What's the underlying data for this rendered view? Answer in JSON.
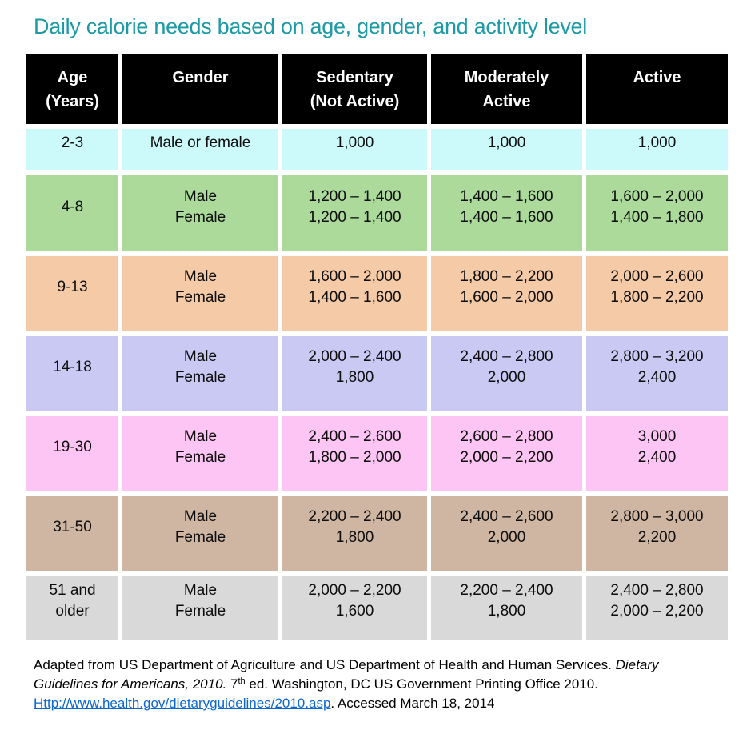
{
  "title": "Daily calorie needs based on age, gender, and activity level",
  "colors": {
    "title_teal": "#1C9AA5",
    "header_bg": "#000000",
    "header_text": "#FFFFFF",
    "link_blue": "#0B67D0",
    "row_cyan": "#CCFAFB",
    "row_green": "#ABDA9B",
    "row_peach": "#F5CBA7",
    "row_lavender": "#C9C9F3",
    "row_pink": "#FCC5F3",
    "row_tan": "#CFB6A3",
    "row_gray": "#D9D9D9"
  },
  "table": {
    "headers": [
      {
        "lines": [
          "Age",
          "(Years)"
        ]
      },
      {
        "lines": [
          "Gender"
        ]
      },
      {
        "lines": [
          "Sedentary",
          "(Not Active)"
        ]
      },
      {
        "lines": [
          "Moderately",
          "Active"
        ]
      },
      {
        "lines": [
          "Active"
        ]
      }
    ],
    "rows": [
      {
        "bg": "#CCFAFB",
        "age": [
          "2-3"
        ],
        "gender": [
          "Male or female"
        ],
        "sedentary": [
          "1,000"
        ],
        "moderately_active": [
          "1,000"
        ],
        "active": [
          "1,000"
        ]
      },
      {
        "bg": "#ABDA9B",
        "age": [
          "4-8"
        ],
        "gender": [
          "Male",
          "Female"
        ],
        "sedentary": [
          "1,200 – 1,400",
          "1,200 – 1,400"
        ],
        "moderately_active": [
          "1,400 – 1,600",
          "1,400 – 1,600"
        ],
        "active": [
          "1,600 – 2,000",
          "1,400 – 1,800"
        ]
      },
      {
        "bg": "#F5CBA7",
        "age": [
          "9-13"
        ],
        "gender": [
          "Male",
          "Female"
        ],
        "sedentary": [
          "1,600 – 2,000",
          "1,400 – 1,600"
        ],
        "moderately_active": [
          "1,800 – 2,200",
          "1,600 – 2,000"
        ],
        "active": [
          "2,000 – 2,600",
          "1,800 – 2,200"
        ]
      },
      {
        "bg": "#C9C9F3",
        "age": [
          "14-18"
        ],
        "gender": [
          "Male",
          "Female"
        ],
        "sedentary": [
          "2,000 – 2,400",
          "1,800"
        ],
        "moderately_active": [
          "2,400 – 2,800",
          "2,000"
        ],
        "active": [
          "2,800 – 3,200",
          "2,400"
        ]
      },
      {
        "bg": "#FCC5F3",
        "age": [
          "19-30"
        ],
        "gender": [
          "Male",
          "Female"
        ],
        "sedentary": [
          "2,400 – 2,600",
          "1,800 – 2,000"
        ],
        "moderately_active": [
          "2,600 – 2,800",
          "2,000 – 2,200"
        ],
        "active": [
          "3,000",
          "2,400"
        ]
      },
      {
        "bg": "#CFB6A3",
        "age": [
          "31-50"
        ],
        "gender": [
          "Male",
          "Female"
        ],
        "sedentary": [
          "2,200 – 2,400",
          "1,800"
        ],
        "moderately_active": [
          "2,400 – 2,600",
          "2,000"
        ],
        "active": [
          "2,800 – 3,000",
          "2,200"
        ]
      },
      {
        "bg": "#D9D9D9",
        "age": [
          "51 and",
          "older"
        ],
        "gender": [
          "Male",
          "Female"
        ],
        "sedentary": [
          "2,000 – 2,200",
          "1,600"
        ],
        "moderately_active": [
          "2,200 – 2,400",
          "1,800"
        ],
        "active": [
          "2,400 – 2,800",
          "2,000 – 2,200"
        ]
      }
    ]
  },
  "footer": {
    "line1_normal": "Adapted from US Department of Agriculture and US Department of Health and Human Services. ",
    "line1_italic": "Dietary",
    "line2_italic": "Guidelines for Americans, 2010.",
    "line2_normal_a": " 7",
    "line2_superscript": "th",
    "line2_normal_b": " ed. Washington, DC US Government Printing Office 2010.",
    "line3_link": "Http://www.health.gov/dietaryguidelines/2010.asp",
    "line3_normal": ". Accessed March 18, 2014"
  }
}
